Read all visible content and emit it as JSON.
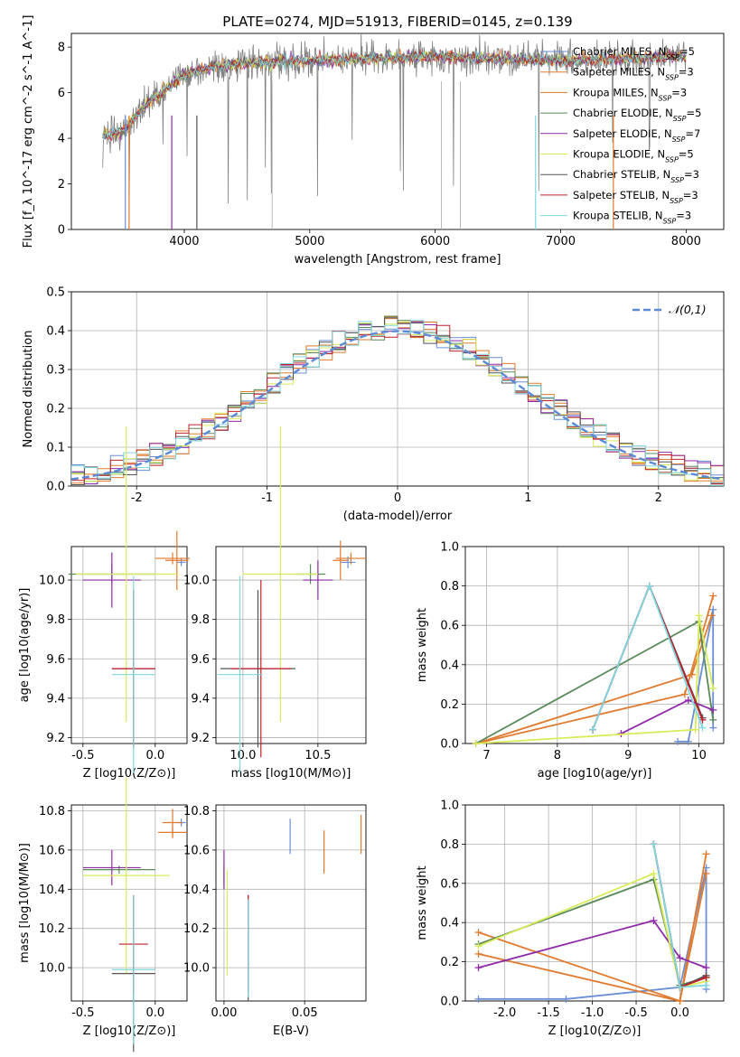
{
  "title": "PLATE=0274, MJD=51913, FIBERID=0145, z=0.139",
  "colors": {
    "Chabrier MILES": "#6a8fd6",
    "Salpeter MILES": "#e07a2e",
    "Kroupa MILES": "#e07a2e",
    "Chabrier ELODIE": "#5a8a5a",
    "Salpeter ELODIE": "#8e2aa8",
    "Kroupa ELODIE": "#d8ec5a",
    "Chabrier STELIB": "#555555",
    "Salpeter STELIB": "#c0202a",
    "Kroupa STELIB": "#7fd8e0",
    "data": "#808080",
    "gauss": "#5b8ad6"
  },
  "chart_data": [
    {
      "id": "spectrum",
      "type": "line",
      "title": "PLATE=0274, MJD=51913, FIBERID=0145, z=0.139",
      "xlabel": "wavelength [Angstrom, rest frame]",
      "ylabel": "Flux [f_λ 10^-17 erg cm^-2 s^-1 A^-1]",
      "xlim": [
        3100,
        8300
      ],
      "ylim": [
        0,
        8.6
      ],
      "xticks": [
        4000,
        5000,
        6000,
        7000,
        8000
      ],
      "yticks": [
        0,
        2,
        4,
        6,
        8
      ],
      "legend": [
        "Chabrier MILES, N_SSP=5",
        "Salpeter MILES, N_SSP=3",
        "Kroupa MILES, N_SSP=3",
        "Chabrier ELODIE, N_SSP=5",
        "Salpeter ELODIE, N_SSP=7",
        "Kroupa ELODIE, N_SSP=5",
        "Chabrier STELIB, N_SSP=3",
        "Salpeter STELIB, N_SSP=3",
        "Kroupa STELIB, N_SSP=3"
      ],
      "legend_position": "right",
      "continuum": {
        "x": [
          3350,
          3500,
          3700,
          4000,
          4200,
          4500,
          5000,
          5500,
          6000,
          6500,
          7000,
          7500,
          8000
        ],
        "y": [
          4.1,
          4.3,
          5.5,
          6.8,
          7.1,
          7.3,
          7.4,
          7.5,
          7.6,
          7.5,
          7.4,
          7.5,
          7.6
        ]
      }
    },
    {
      "id": "residuals",
      "type": "line",
      "xlabel": "(data-model)/error",
      "ylabel": "Normed distribution",
      "xlim": [
        -2.5,
        2.5
      ],
      "ylim": [
        0,
        0.5
      ],
      "xticks": [
        -2,
        -1,
        0,
        1,
        2
      ],
      "yticks": [
        0.0,
        0.1,
        0.2,
        0.3,
        0.4,
        0.5
      ],
      "legend": [
        "𝒩(0,1)"
      ],
      "legend_position": "top-right",
      "bin_width": 0.1,
      "gauss_mu": 0,
      "gauss_sigma": 1
    },
    {
      "id": "age_vs_Z",
      "type": "scatter",
      "xlabel": "Z [log10(Z/Z⊙)]",
      "ylabel": "age  [log10(age/yr)]",
      "xlim": [
        -0.58,
        0.22
      ],
      "ylim": [
        9.17,
        10.17
      ],
      "xticks": [
        -0.5,
        0.0
      ],
      "yticks": [
        9.2,
        9.4,
        9.6,
        9.8,
        10.0
      ],
      "points": [
        {
          "m": "Chabrier MILES",
          "x": 0.18,
          "y": 10.09,
          "xe": 0.03,
          "ye": 0.02
        },
        {
          "m": "Salpeter MILES",
          "x": 0.12,
          "y": 10.11,
          "xe": 0.12,
          "ye": 0.03
        },
        {
          "m": "Kroupa MILES",
          "x": 0.15,
          "y": 10.1,
          "xe": 0.08,
          "ye": 0.15
        },
        {
          "m": "Chabrier ELODIE",
          "x": -0.3,
          "y": 10.03,
          "xe": 0.3,
          "ye": 0.05
        },
        {
          "m": "Salpeter ELODIE",
          "x": -0.3,
          "y": 10.0,
          "xe": 0.2,
          "ye": 0.14
        },
        {
          "m": "Kroupa ELODIE",
          "x": -0.2,
          "y": 10.03,
          "xe": 0.35,
          "ye": 0.75
        },
        {
          "m": "Chabrier STELIB",
          "x": -0.15,
          "y": 9.55,
          "xe": 0.15,
          "ye": 0.4
        },
        {
          "m": "Salpeter STELIB",
          "x": -0.15,
          "y": 9.55,
          "xe": 0.15,
          "ye": 0.4
        },
        {
          "m": "Kroupa STELIB",
          "x": -0.15,
          "y": 9.52,
          "xe": 0.15,
          "ye": 0.5
        }
      ]
    },
    {
      "id": "age_vs_mass",
      "type": "scatter",
      "xlabel": "mass [log10(M/M⊙)]",
      "ylabel": "",
      "xlim": [
        9.82,
        10.82
      ],
      "ylim": [
        9.17,
        10.17
      ],
      "xticks": [
        10.0,
        10.5
      ],
      "yticks": [
        9.2,
        9.4,
        9.6,
        9.8,
        10.0
      ],
      "points": [
        {
          "m": "Chabrier MILES",
          "x": 10.7,
          "y": 10.09,
          "xe": 0.05,
          "ye": 0.03
        },
        {
          "m": "Salpeter MILES",
          "x": 10.72,
          "y": 10.11,
          "xe": 0.1,
          "ye": 0.03
        },
        {
          "m": "Kroupa MILES",
          "x": 10.65,
          "y": 10.1,
          "xe": 0.05,
          "ye": 0.1
        },
        {
          "m": "Chabrier ELODIE",
          "x": 10.45,
          "y": 10.03,
          "xe": 0.1,
          "ye": 0.05
        },
        {
          "m": "Salpeter ELODIE",
          "x": 10.5,
          "y": 10.0,
          "xe": 0.1,
          "ye": 0.1
        },
        {
          "m": "Kroupa ELODIE",
          "x": 10.25,
          "y": 10.03,
          "xe": 0.25,
          "ye": 0.75
        },
        {
          "m": "Chabrier STELIB",
          "x": 10.1,
          "y": 9.55,
          "xe": 0.25,
          "ye": 0.4
        },
        {
          "m": "Salpeter STELIB",
          "x": 10.12,
          "y": 9.55,
          "xe": 0.2,
          "ye": 0.45
        },
        {
          "m": "Kroupa STELIB",
          "x": 9.98,
          "y": 9.52,
          "xe": 0.15,
          "ye": 0.5
        }
      ]
    },
    {
      "id": "weight_vs_age",
      "type": "line",
      "xlabel": "age  [log10(age/yr)]",
      "ylabel": "mass weight",
      "xlim": [
        6.7,
        10.35
      ],
      "ylim": [
        0,
        1.0
      ],
      "xticks": [
        7,
        8,
        9,
        10
      ],
      "yticks": [
        0.0,
        0.2,
        0.4,
        0.6,
        0.8,
        1.0
      ],
      "series": [
        {
          "name": "Chabrier MILES",
          "x": [
            9.7,
            9.85,
            10.2,
            10.2
          ],
          "y": [
            0.01,
            0.01,
            0.68,
            0.08
          ]
        },
        {
          "name": "Salpeter MILES",
          "x": [
            6.85,
            9.8,
            10.2
          ],
          "y": [
            0.0,
            0.25,
            0.75
          ]
        },
        {
          "name": "Kroupa MILES",
          "x": [
            6.85,
            9.9,
            10.18
          ],
          "y": [
            0.0,
            0.35,
            0.65
          ]
        },
        {
          "name": "Chabrier ELODIE",
          "x": [
            6.85,
            10.0,
            10.2
          ],
          "y": [
            0.0,
            0.62,
            0.12
          ]
        },
        {
          "name": "Salpeter ELODIE",
          "x": [
            8.9,
            9.85,
            10.2
          ],
          "y": [
            0.05,
            0.22,
            0.17
          ]
        },
        {
          "name": "Kroupa ELODIE",
          "x": [
            6.85,
            9.95,
            10.0,
            10.2
          ],
          "y": [
            0.0,
            0.07,
            0.65,
            0.28
          ]
        },
        {
          "name": "Chabrier STELIB",
          "x": [
            8.5,
            9.3,
            10.05
          ],
          "y": [
            0.07,
            0.8,
            0.13
          ]
        },
        {
          "name": "Salpeter STELIB",
          "x": [
            8.5,
            9.3,
            10.05
          ],
          "y": [
            0.07,
            0.8,
            0.12
          ]
        },
        {
          "name": "Kroupa STELIB",
          "x": [
            8.5,
            9.3,
            10.05
          ],
          "y": [
            0.07,
            0.8,
            0.08
          ]
        }
      ]
    },
    {
      "id": "mass_vs_Z",
      "type": "scatter",
      "xlabel": "Z [log10(Z/Z⊙)]",
      "ylabel": "mass [log10(M/M⊙)]",
      "xlim": [
        -0.58,
        0.22
      ],
      "ylim": [
        9.83,
        10.83
      ],
      "xticks": [
        -0.5,
        0.0
      ],
      "yticks": [
        10.0,
        10.2,
        10.4,
        10.6,
        10.8
      ],
      "points": [
        {
          "m": "Chabrier MILES",
          "x": 0.18,
          "y": 10.74,
          "xe": 0.03,
          "ye": 0.02
        },
        {
          "m": "Salpeter MILES",
          "x": 0.12,
          "y": 10.69,
          "xe": 0.1,
          "ye": 0.03
        },
        {
          "m": "Kroupa MILES",
          "x": 0.12,
          "y": 10.74,
          "xe": 0.07,
          "ye": 0.07
        },
        {
          "m": "Chabrier ELODIE",
          "x": -0.25,
          "y": 10.5,
          "xe": 0.25,
          "ye": 0.02
        },
        {
          "m": "Salpeter ELODIE",
          "x": -0.3,
          "y": 10.51,
          "xe": 0.2,
          "ye": 0.09
        },
        {
          "m": "Kroupa ELODIE",
          "x": -0.2,
          "y": 10.47,
          "xe": 0.3,
          "ye": 0.5
        },
        {
          "m": "Chabrier STELIB",
          "x": -0.15,
          "y": 9.97,
          "xe": 0.15,
          "ye": 0.4
        },
        {
          "m": "Salpeter STELIB",
          "x": -0.15,
          "y": 10.12,
          "xe": 0.1,
          "ye": 0.25
        },
        {
          "m": "Kroupa STELIB",
          "x": -0.15,
          "y": 9.99,
          "xe": 0.15,
          "ye": 0.38
        }
      ]
    },
    {
      "id": "mass_vs_EBV",
      "type": "scatter",
      "xlabel": "E(B-V)",
      "ylabel": "",
      "xlim": [
        -0.005,
        0.088
      ],
      "ylim": [
        9.83,
        10.83
      ],
      "xticks": [
        0.0,
        0.05
      ],
      "yticks": [
        10.0,
        10.2,
        10.4,
        10.6,
        10.8
      ],
      "points": [
        {
          "m": "Chabrier MILES",
          "x": 0.041,
          "y": 10.67,
          "xe": 0,
          "ye": 0.09
        },
        {
          "m": "Salpeter MILES",
          "x": 0.062,
          "y": 10.59,
          "xe": 0,
          "ye": 0.11
        },
        {
          "m": "Kroupa MILES",
          "x": 0.085,
          "y": 10.68,
          "xe": 0,
          "ye": 0.1
        },
        {
          "m": "Chabrier ELODIE",
          "x": 0.0,
          "y": 10.47,
          "xe": 0,
          "ye": 0.05
        },
        {
          "m": "Salpeter ELODIE",
          "x": 0.0,
          "y": 10.5,
          "xe": 0,
          "ye": 0.1
        },
        {
          "m": "Kroupa ELODIE",
          "x": 0.002,
          "y": 10.23,
          "xe": 0,
          "ye": 0.27
        },
        {
          "m": "Chabrier STELIB",
          "x": 0.015,
          "y": 10.1,
          "xe": 0,
          "ye": 0.27
        },
        {
          "m": "Salpeter STELIB",
          "x": 0.015,
          "y": 10.12,
          "xe": 0,
          "ye": 0.25
        },
        {
          "m": "Kroupa STELIB",
          "x": 0.015,
          "y": 10.1,
          "xe": 0,
          "ye": 0.25
        }
      ]
    },
    {
      "id": "weight_vs_Z",
      "type": "line",
      "xlabel": "Z [log10(Z/Z⊙)]",
      "ylabel": "mass weight",
      "xlim": [
        -2.45,
        0.5
      ],
      "ylim": [
        0,
        1.0
      ],
      "xticks": [
        -2.0,
        -1.5,
        -1.0,
        -0.5,
        0.0
      ],
      "yticks": [
        0.0,
        0.2,
        0.4,
        0.6,
        0.8,
        1.0
      ],
      "series": [
        {
          "name": "Chabrier MILES",
          "x": [
            -2.3,
            -1.3,
            0.0,
            0.3,
            0.3
          ],
          "y": [
            0.01,
            0.01,
            0.07,
            0.68,
            0.06
          ]
        },
        {
          "name": "Salpeter MILES",
          "x": [
            -2.3,
            0.0,
            0.3
          ],
          "y": [
            0.24,
            0.0,
            0.75
          ]
        },
        {
          "name": "Kroupa MILES",
          "x": [
            -2.3,
            0.0,
            0.3
          ],
          "y": [
            0.35,
            0.0,
            0.65
          ]
        },
        {
          "name": "Chabrier ELODIE",
          "x": [
            -2.3,
            -0.3,
            0.0,
            0.3
          ],
          "y": [
            0.29,
            0.62,
            0.08,
            0.12
          ]
        },
        {
          "name": "Salpeter ELODIE",
          "x": [
            -2.3,
            -0.3,
            0.0,
            0.3
          ],
          "y": [
            0.17,
            0.41,
            0.22,
            0.17
          ]
        },
        {
          "name": "Kroupa ELODIE",
          "x": [
            -2.3,
            -0.3,
            0.0,
            0.3
          ],
          "y": [
            0.28,
            0.65,
            0.07,
            0.1
          ]
        },
        {
          "name": "Chabrier STELIB",
          "x": [
            -0.3,
            0.0,
            0.3
          ],
          "y": [
            0.8,
            0.07,
            0.13
          ]
        },
        {
          "name": "Salpeter STELIB",
          "x": [
            -0.3,
            0.0,
            0.3
          ],
          "y": [
            0.8,
            0.07,
            0.12
          ]
        },
        {
          "name": "Kroupa STELIB",
          "x": [
            -0.3,
            0.0,
            0.3
          ],
          "y": [
            0.8,
            0.07,
            0.08
          ]
        }
      ]
    }
  ]
}
